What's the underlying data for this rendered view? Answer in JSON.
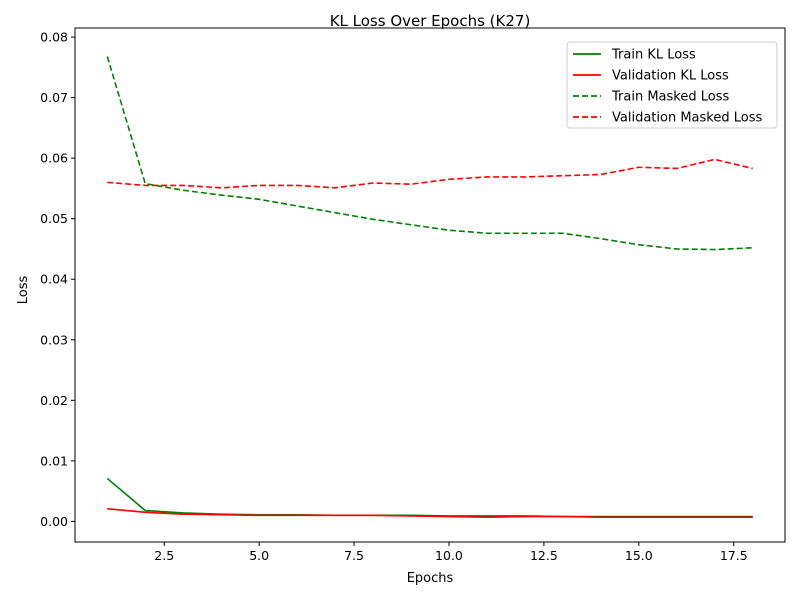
{
  "chart_data": {
    "type": "line",
    "title": "KL Loss Over Epochs (K27)",
    "xlabel": "Epochs",
    "ylabel": "Loss",
    "xlim": [
      0.15,
      18.85
    ],
    "ylim": [
      -0.0034,
      0.0815
    ],
    "xticks": [
      "2.5",
      "5.0",
      "7.5",
      "10.0",
      "12.5",
      "15.0",
      "17.5"
    ],
    "yticks": [
      "0.00",
      "0.01",
      "0.02",
      "0.03",
      "0.04",
      "0.05",
      "0.06",
      "0.07",
      "0.08"
    ],
    "grid": false,
    "legend_position": "top-right",
    "x": [
      1,
      2,
      3,
      4,
      5,
      6,
      7,
      8,
      9,
      10,
      11,
      12,
      13,
      14,
      15,
      16,
      17,
      18
    ],
    "series": [
      {
        "name": "Train KL Loss",
        "color": "#008000",
        "style": "solid",
        "values": [
          0.0071,
          0.0018,
          0.0014,
          0.0012,
          0.0011,
          0.0011,
          0.001,
          0.001,
          0.001,
          0.0009,
          0.0009,
          0.0009,
          0.0008,
          0.0008,
          0.0008,
          0.0008,
          0.0008,
          0.0008
        ]
      },
      {
        "name": "Validation KL Loss",
        "color": "#ff0000",
        "style": "solid",
        "values": [
          0.0021,
          0.0015,
          0.0012,
          0.0011,
          0.001,
          0.001,
          0.001,
          0.001,
          0.0009,
          0.0008,
          0.0007,
          0.0008,
          0.0008,
          0.0007,
          0.0007,
          0.0007,
          0.0007,
          0.0007
        ]
      },
      {
        "name": "Train Masked Loss",
        "color": "#008000",
        "style": "dashed",
        "values": [
          0.0768,
          0.0558,
          0.0547,
          0.0539,
          0.0532,
          0.0521,
          0.051,
          0.0499,
          0.049,
          0.0481,
          0.0476,
          0.0476,
          0.0476,
          0.0467,
          0.0457,
          0.045,
          0.0449,
          0.0452
        ]
      },
      {
        "name": "Validation Masked Loss",
        "color": "#ff0000",
        "style": "dashed",
        "values": [
          0.056,
          0.0555,
          0.0555,
          0.0551,
          0.0555,
          0.0555,
          0.0551,
          0.0559,
          0.0557,
          0.0565,
          0.0569,
          0.0569,
          0.0571,
          0.0573,
          0.0585,
          0.0583,
          0.0598,
          0.0583
        ]
      }
    ]
  }
}
